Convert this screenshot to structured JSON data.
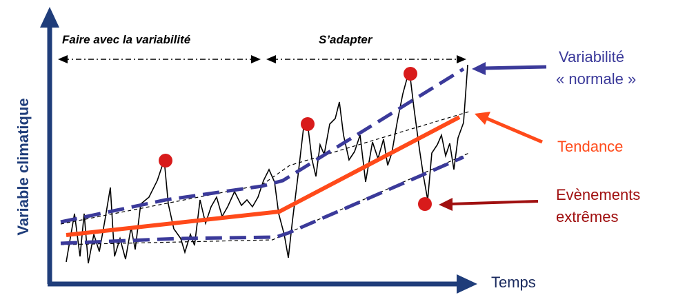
{
  "axes": {
    "y_label": "Variable climatique",
    "x_label": "Temps"
  },
  "phases": {
    "left": "Faire avec la variabilité",
    "right": "S’adapter"
  },
  "legend": {
    "variability_line1": "Variabilité",
    "variability_line2": "« normale »",
    "trend": "Tendance",
    "extremes_line1": "Evènements",
    "extremes_line2": "extrêmes"
  },
  "colors": {
    "axis": "#1f3d7a",
    "variability": "#3b3a9a",
    "trend": "#ff4a1a",
    "extremes_text": "#a01010",
    "extreme_dot": "#d81b1b"
  }
}
